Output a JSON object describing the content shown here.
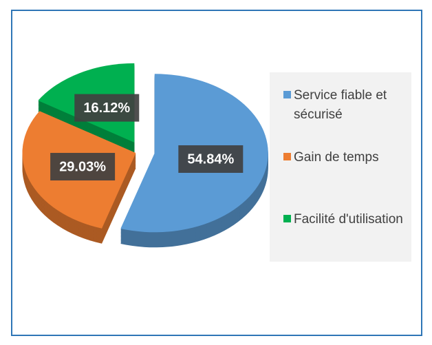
{
  "chart_data": {
    "type": "pie",
    "categories": [
      "Service fiable et sécurisé",
      "Gain de temps",
      "Facilité d'utilisation"
    ],
    "values": [
      54.84,
      29.03,
      16.12
    ],
    "value_labels": [
      "54.84%",
      "29.03%",
      "16.12%"
    ],
    "colors": [
      "#5b9bd5",
      "#ed7d31",
      "#00b050"
    ],
    "legend": "right"
  }
}
